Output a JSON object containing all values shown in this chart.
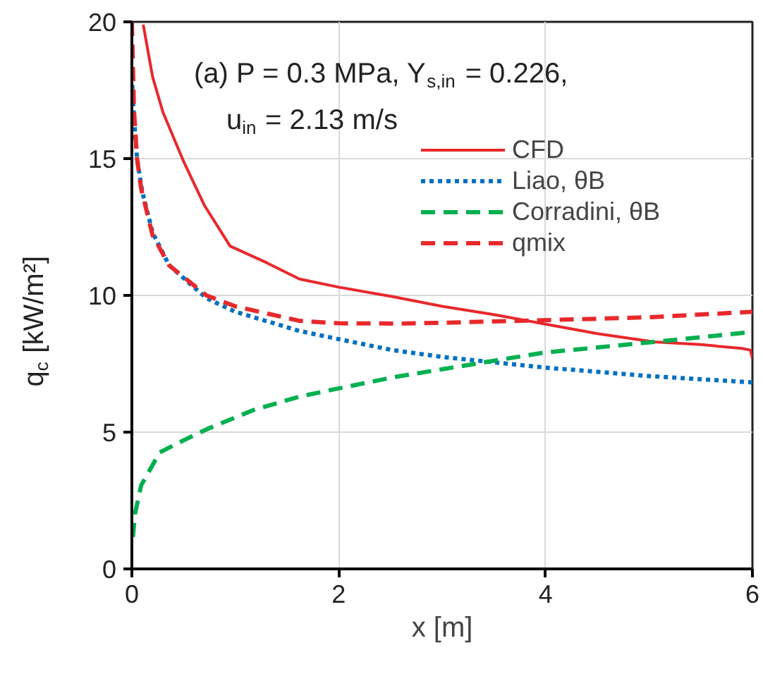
{
  "chart_data": {
    "type": "line",
    "xlabel": "x [m]",
    "ylabel": "q$_{c}$ [kW/m²]",
    "annotations": [
      "(a) P = 0.3 MPa, Y$_{s,in}$ = 0.226,",
      "u$_{in}$ = 2.13 m/s"
    ],
    "xlim": [
      0,
      6
    ],
    "ylim": [
      0,
      20
    ],
    "xticks": [
      0,
      2,
      4,
      6
    ],
    "yticks": [
      0,
      5,
      10,
      15,
      20
    ],
    "grid": true,
    "legend": "top right",
    "marker": "none",
    "series": [
      {
        "name": "CFD",
        "color": "#e8282b",
        "line_style": "solid",
        "x": [
          0.11,
          0.2,
          0.3,
          0.5,
          0.7,
          0.95,
          1.3,
          1.62,
          2.0,
          2.53,
          3.0,
          3.5,
          3.97,
          4.5,
          5.05,
          5.5,
          5.9,
          5.98,
          6.0
        ],
        "values": [
          19.9,
          18.0,
          16.7,
          14.9,
          13.3,
          11.8,
          11.2,
          10.6,
          10.3,
          9.95,
          9.6,
          9.3,
          8.97,
          8.6,
          8.3,
          8.2,
          8.06,
          8.0,
          7.7
        ]
      },
      {
        "name": "Liao, θB",
        "color": "#0070c0",
        "line_style": "dotted",
        "x": [
          0,
          0.02,
          0.05,
          0.1,
          0.2,
          0.36,
          0.72,
          1.0,
          1.62,
          2.0,
          2.52,
          3.0,
          3.97,
          5.0,
          6.0
        ],
        "values": [
          18.0,
          16.5,
          15.0,
          13.8,
          12.3,
          11.1,
          9.9,
          9.4,
          8.7,
          8.4,
          8.0,
          7.75,
          7.37,
          7.05,
          6.82
        ]
      },
      {
        "name": "Corradini, θB",
        "color": "#00b050",
        "line_style": "dashed",
        "x": [
          0.01,
          0.03,
          0.09,
          0.27,
          0.5,
          0.72,
          1.17,
          1.62,
          2.0,
          2.52,
          3.0,
          3.97,
          5.05,
          6.0
        ],
        "values": [
          1.17,
          2.0,
          3.06,
          4.26,
          4.7,
          5.1,
          5.8,
          6.3,
          6.6,
          7.0,
          7.3,
          7.9,
          8.3,
          8.66
        ]
      },
      {
        "name": "qmix",
        "color": "#e8282b",
        "line_style": "dashed",
        "x": [
          0,
          0.02,
          0.05,
          0.09,
          0.2,
          0.36,
          0.72,
          1.0,
          1.62,
          2.0,
          2.6,
          3.0,
          3.97,
          5.0,
          6.0
        ],
        "values": [
          20.0,
          16.8,
          15.0,
          13.9,
          12.2,
          11.1,
          10.0,
          9.6,
          9.07,
          8.98,
          8.97,
          9.0,
          9.09,
          9.2,
          9.4
        ]
      }
    ]
  }
}
